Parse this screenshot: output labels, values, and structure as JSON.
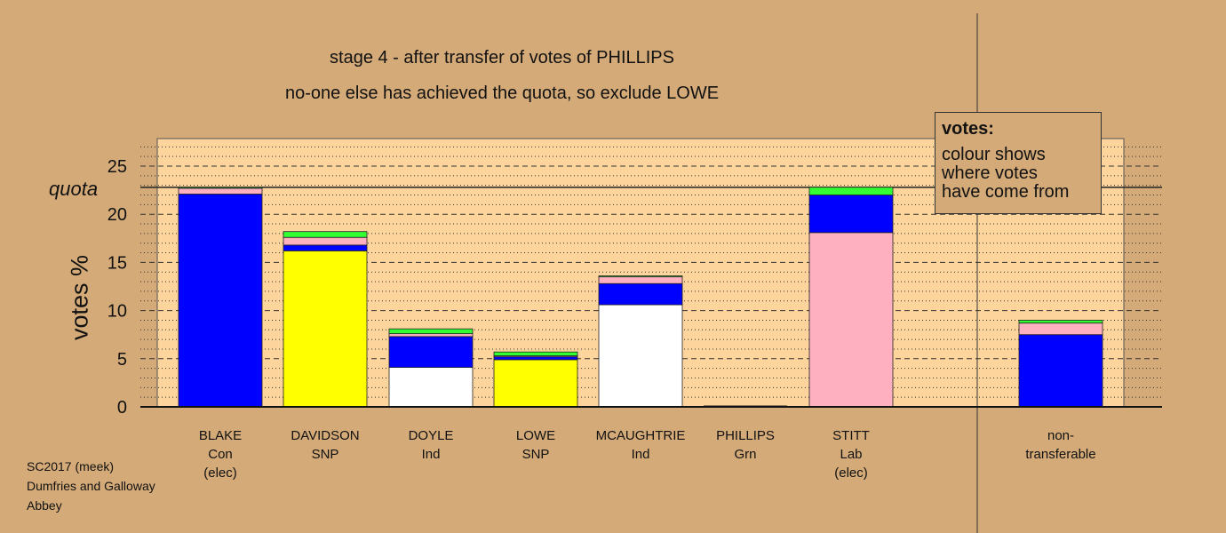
{
  "chart_data": {
    "type": "bar",
    "stacked": true,
    "title": "stage 4 - after transfer of votes of PHILLIPS",
    "subtitle": "no-one else has achieved the quota, so exclude LOWE",
    "ylabel": "votes %",
    "ylim": [
      0,
      28
    ],
    "yticks": [
      0,
      5,
      10,
      15,
      20,
      25
    ],
    "quota": 22.8,
    "quota_label": "quota",
    "categories": [
      {
        "name": "BLAKE",
        "party": "Con",
        "note": "(elec)"
      },
      {
        "name": "DAVIDSON",
        "party": "SNP",
        "note": ""
      },
      {
        "name": "DOYLE",
        "party": "Ind",
        "note": ""
      },
      {
        "name": "LOWE",
        "party": "SNP",
        "note": ""
      },
      {
        "name": "MCAUGHTRIE",
        "party": "Ind",
        "note": ""
      },
      {
        "name": "PHILLIPS",
        "party": "Grn",
        "note": ""
      },
      {
        "name": "STITT",
        "party": "Lab",
        "note": "(elec)"
      },
      {
        "name": "non-",
        "party": "transferable",
        "note": ""
      }
    ],
    "stacks": [
      [
        {
          "color": "#0000ff",
          "value": 22.1
        },
        {
          "color": "#ffb0c0",
          "value": 0.6
        },
        {
          "color": "#33ff33",
          "value": 0.1
        }
      ],
      [
        {
          "color": "#ffff00",
          "value": 16.2
        },
        {
          "color": "#0000ff",
          "value": 0.6
        },
        {
          "color": "#ffb0c0",
          "value": 0.8
        },
        {
          "color": "#33ff33",
          "value": 0.6
        }
      ],
      [
        {
          "color": "#ffffff",
          "value": 4.1
        },
        {
          "color": "#0000ff",
          "value": 3.2
        },
        {
          "color": "#ffb0c0",
          "value": 0.3
        },
        {
          "color": "#33ff33",
          "value": 0.5
        }
      ],
      [
        {
          "color": "#ffff00",
          "value": 4.9
        },
        {
          "color": "#0000ff",
          "value": 0.3
        },
        {
          "color": "#ffb0c0",
          "value": 0.1
        },
        {
          "color": "#33ff33",
          "value": 0.4
        }
      ],
      [
        {
          "color": "#ffffff",
          "value": 10.6
        },
        {
          "color": "#0000ff",
          "value": 2.2
        },
        {
          "color": "#ffb0c0",
          "value": 0.7
        },
        {
          "color": "#33ff33",
          "value": 0.1
        }
      ],
      [],
      [
        {
          "color": "#ffb0c0",
          "value": 18.1
        },
        {
          "color": "#0000ff",
          "value": 3.9
        },
        {
          "color": "#33ff33",
          "value": 0.8
        }
      ],
      [
        {
          "color": "#0000ff",
          "value": 7.5
        },
        {
          "color": "#ffb0c0",
          "value": 1.2
        },
        {
          "color": "#33ff33",
          "value": 0.3
        }
      ]
    ]
  },
  "legend": {
    "title": "votes:",
    "lines": [
      "colour shows",
      "where votes",
      "have come from"
    ]
  },
  "footer": {
    "lines": [
      "SC2017 (meek)",
      "Dumfries and Galloway",
      "Abbey"
    ]
  }
}
